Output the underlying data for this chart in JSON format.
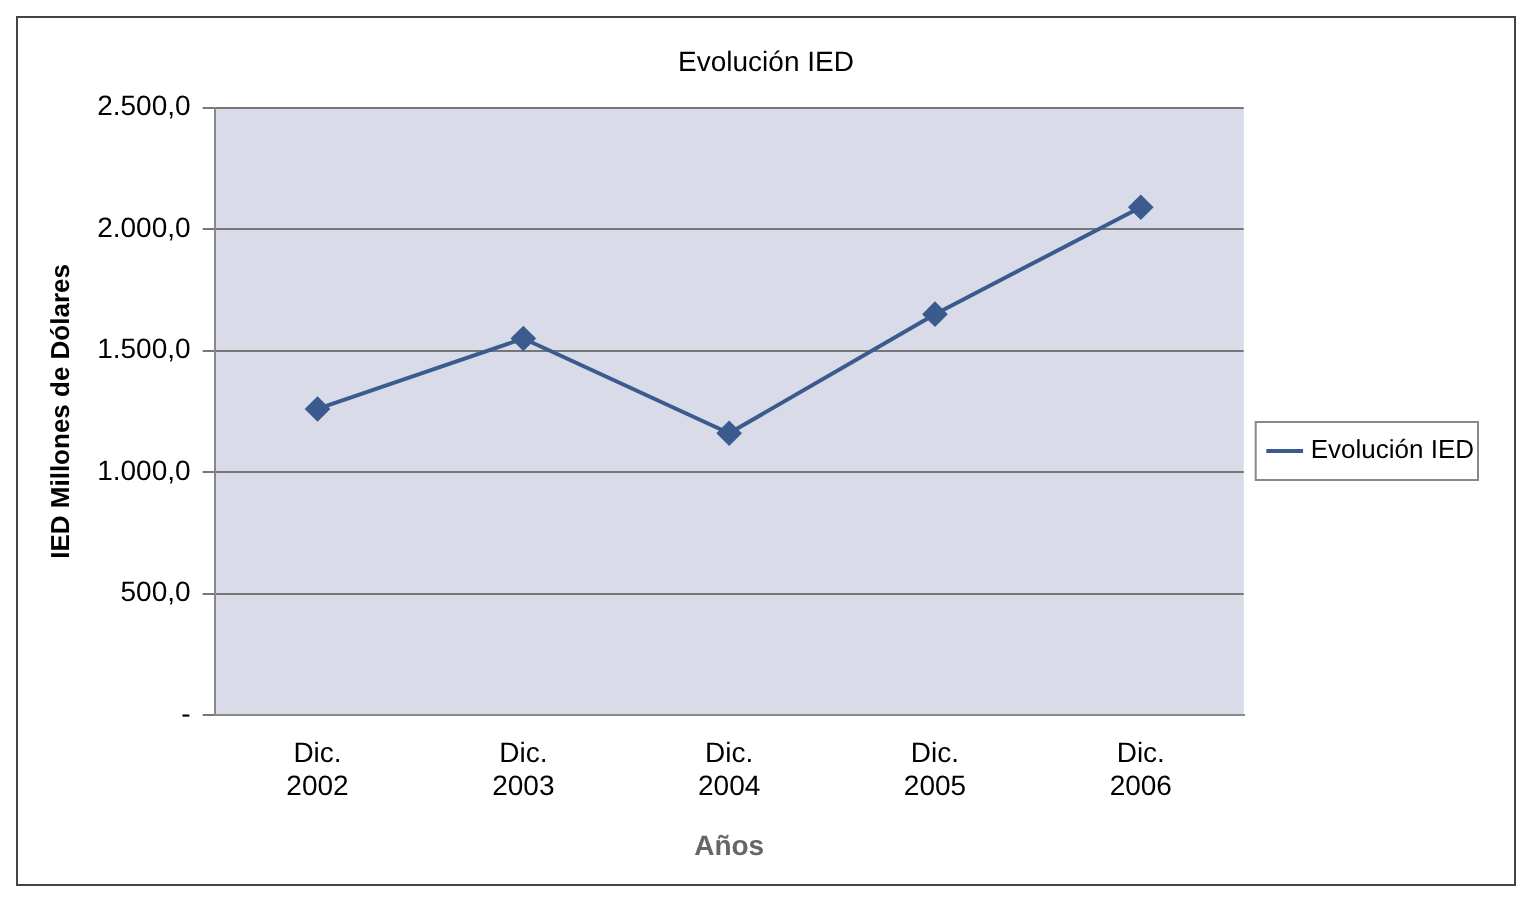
{
  "chart_data": {
    "type": "line",
    "title": "Evolución IED",
    "xlabel": "Años",
    "ylabel": "IED Millones de Dólares",
    "categories": [
      "Dic. 2002",
      "Dic. 2003",
      "Dic. 2004",
      "Dic. 2005",
      "Dic. 2006"
    ],
    "series": [
      {
        "name": "Evolución IED",
        "color": "#3b5b8e",
        "values": [
          1260,
          1550,
          1160,
          1650,
          2090
        ]
      }
    ],
    "ylim": [
      0,
      2500
    ],
    "yticks": [
      {
        "value": 0,
        "label": "-"
      },
      {
        "value": 500,
        "label": "500,0"
      },
      {
        "value": 1000,
        "label": "1.000,0"
      },
      {
        "value": 1500,
        "label": "1.500,0"
      },
      {
        "value": 2000,
        "label": "2.000,0"
      },
      {
        "value": 2500,
        "label": "2.500,0"
      }
    ],
    "grid": "y",
    "legend": "right",
    "marker": "diamond",
    "line_style": "solid"
  }
}
